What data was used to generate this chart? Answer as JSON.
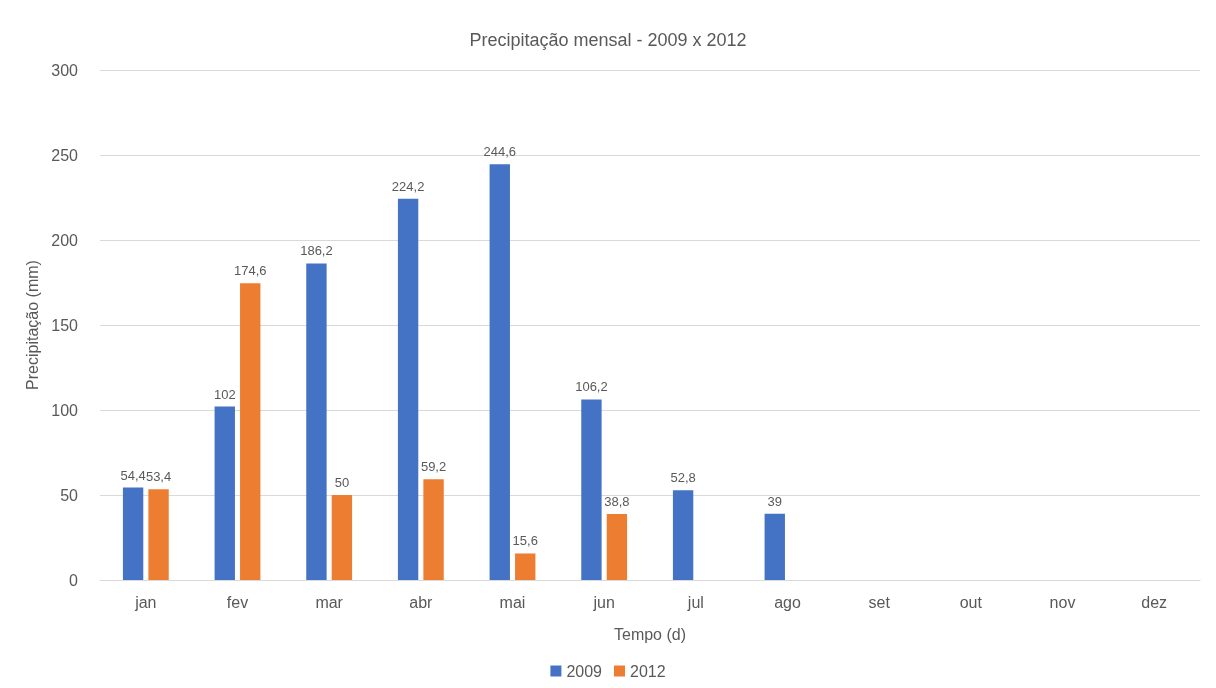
{
  "chart_data": {
    "type": "bar",
    "title": "Precipitação mensal - 2009 x 2012",
    "xlabel": "Tempo (d)",
    "ylabel": "Precipitação (mm)",
    "categories": [
      "jan",
      "fev",
      "mar",
      "abr",
      "mai",
      "jun",
      "jul",
      "ago",
      "set",
      "out",
      "nov",
      "dez"
    ],
    "series": [
      {
        "name": "2009",
        "color": "#4472c4",
        "values": [
          54.4,
          102,
          186.2,
          224.2,
          244.6,
          106.2,
          52.8,
          39,
          null,
          null,
          null,
          null
        ],
        "value_labels": [
          "54,4",
          "102",
          "186,2",
          "224,2",
          "244,6",
          "106,2",
          "52,8",
          "39",
          null,
          null,
          null,
          null
        ]
      },
      {
        "name": "2012",
        "color": "#ed7d31",
        "values": [
          53.4,
          174.6,
          50,
          59.2,
          15.6,
          38.8,
          null,
          null,
          null,
          null,
          null,
          null
        ],
        "value_labels": [
          "53,4",
          "174,6",
          "50",
          "59,2",
          "15,6",
          "38,8",
          null,
          null,
          null,
          null,
          null,
          null
        ]
      }
    ],
    "ylim": [
      0,
      300
    ],
    "yticks": [
      0,
      50,
      100,
      150,
      200,
      250,
      300
    ],
    "grid": "y",
    "legend": "bottom"
  }
}
